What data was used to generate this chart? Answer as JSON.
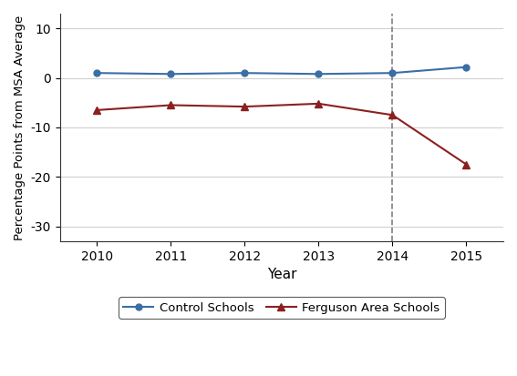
{
  "control_years": [
    2010,
    2011,
    2012,
    2013,
    2014,
    2015
  ],
  "control_values": [
    1.0,
    0.8,
    1.0,
    0.8,
    1.0,
    2.2
  ],
  "ferguson_years": [
    2010,
    2011,
    2012,
    2013,
    2014,
    2015
  ],
  "ferguson_values": [
    -6.5,
    -5.5,
    -5.8,
    -5.2,
    -7.5,
    -17.5
  ],
  "control_color": "#3a6ea5",
  "ferguson_color": "#8b2020",
  "vline_x": 2014,
  "vline_color": "#808080",
  "xlabel": "Year",
  "ylabel": "Percentage Points from MSA Average",
  "ylim": [
    -33,
    13
  ],
  "yticks": [
    -30,
    -20,
    -10,
    0,
    10
  ],
  "xticks": [
    2010,
    2011,
    2012,
    2013,
    2014,
    2015
  ],
  "legend_label_control": "Control Schools",
  "legend_label_ferguson": "Ferguson Area Schools",
  "background_color": "#ffffff",
  "grid_color": "#d0d0d0"
}
